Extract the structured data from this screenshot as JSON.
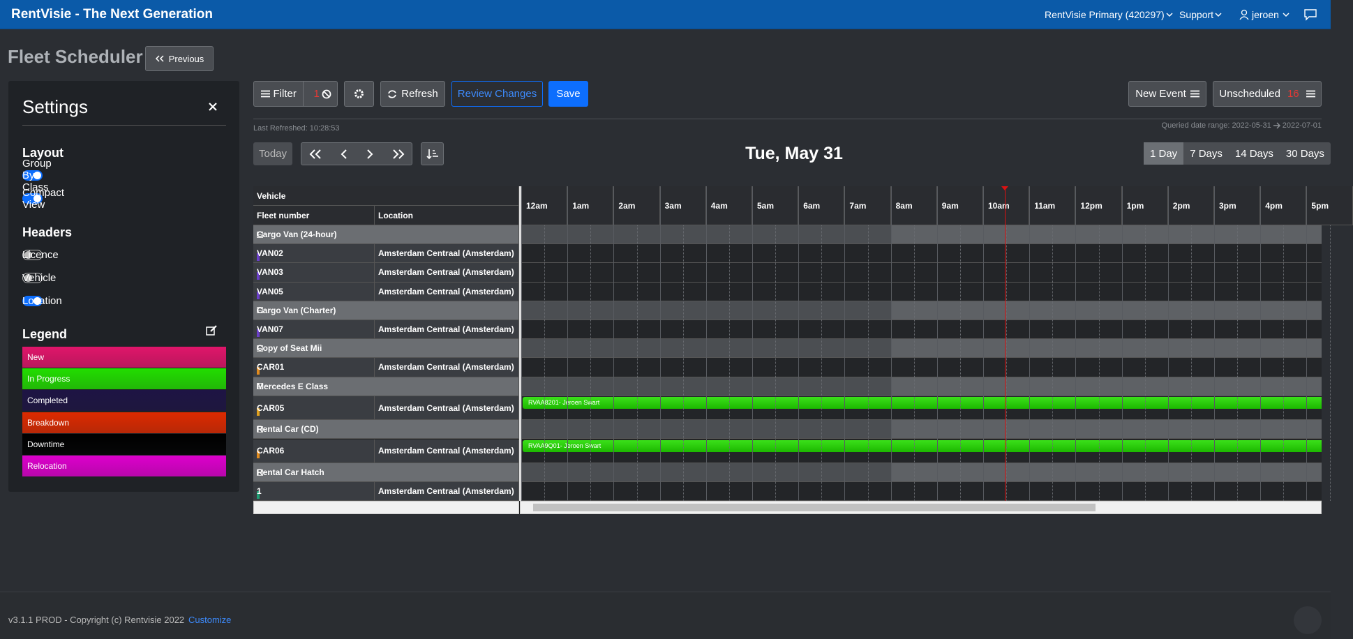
{
  "navbar": {
    "brand": "RentVisie - The Next Generation",
    "account": "RentVisie Primary (420297)",
    "support": "Support",
    "user": "jeroen"
  },
  "page": {
    "title": "Fleet Scheduler",
    "previous": "Previous"
  },
  "settings": {
    "title": "Settings",
    "layout": {
      "heading": "Layout",
      "toggles": [
        {
          "label": "Group By Class",
          "on": true
        },
        {
          "label": "Compact View",
          "on": true
        }
      ]
    },
    "headers": {
      "heading": "Headers",
      "toggles": [
        {
          "label": "Licence",
          "on": false
        },
        {
          "label": "Vehicle",
          "on": false
        },
        {
          "label": "Location",
          "on": true
        }
      ]
    },
    "legend": {
      "heading": "Legend",
      "items": [
        {
          "label": "New",
          "color": "#e0156a"
        },
        {
          "label": "In Progress",
          "color": "#22dd00"
        },
        {
          "label": "Completed",
          "color": "#1e1444"
        },
        {
          "label": "Breakdown",
          "color": "#dd2a00"
        },
        {
          "label": "Downtime",
          "color": "#000000"
        },
        {
          "label": "Relocation",
          "color": "#dd00cc"
        }
      ]
    }
  },
  "toolbar": {
    "filter": "Filter",
    "filter_count": 1,
    "refresh": "Refresh",
    "review": "Review Changes",
    "save": "Save",
    "new_event": "New Event",
    "unscheduled": "Unscheduled",
    "unscheduled_count": 16,
    "last_refreshed": "Last Refreshed: 10:28:53",
    "queried_label": "Queried date range: 2022-05-31",
    "queried_to": "2022-07-01"
  },
  "nav": {
    "today": "Today",
    "date": "Tue, May 31",
    "views": [
      "1 Day",
      "7 Days",
      "14 Days",
      "30 Days"
    ]
  },
  "grid": {
    "vehicle_header": "Vehicle",
    "columns": [
      "Fleet number",
      "Location"
    ],
    "hours": [
      "12am",
      "1am",
      "2am",
      "3am",
      "4am",
      "5am",
      "6am",
      "7am",
      "8am",
      "9am",
      "10am",
      "11am",
      "12pm",
      "1pm",
      "2pm",
      "3pm",
      "4pm",
      "5pm"
    ],
    "rows": [
      {
        "group": "Cargo Van (24-hour)"
      },
      {
        "fleet": "VAN02",
        "location": "Amsterdam Centraal (Amsterdam)",
        "colors": [
          "#2f8be0",
          "#6a3fc8"
        ]
      },
      {
        "fleet": "VAN03",
        "location": "Amsterdam Centraal (Amsterdam)",
        "colors": [
          "#2f8be0",
          "#6a3fc8"
        ]
      },
      {
        "fleet": "VAN05",
        "location": "Amsterdam Centraal (Amsterdam)",
        "colors": [
          "#2f8be0",
          "#6a3fc8"
        ]
      },
      {
        "group": "Cargo Van (Charter)"
      },
      {
        "fleet": "VAN07",
        "location": "Amsterdam Centraal (Amsterdam)",
        "colors": [
          "#6a3fc8"
        ]
      },
      {
        "group": "Copy of Seat Mii"
      },
      {
        "fleet": "CAR01",
        "location": "Amsterdam Centraal (Amsterdam)",
        "colors": [
          "#2bb673",
          "#2f8be0",
          "#e08a1e"
        ]
      },
      {
        "group": "Mercedes E Class"
      },
      {
        "fleet": "CAR05",
        "location": "Amsterdam Centraal (Amsterdam)",
        "colors": [
          "#2f8be0",
          "#e08a1e",
          "#e0a01e"
        ],
        "event": "RVAA8201- Jeroen Swart"
      },
      {
        "group": "Rental Car (CD)"
      },
      {
        "fleet": "CAR06",
        "location": "Amsterdam Centraal (Amsterdam)",
        "colors": [
          "#e08a1e"
        ],
        "event": "RVAA9Q01- Jeroen Swart"
      },
      {
        "group": "Rental Car Hatch"
      },
      {
        "fleet": "1",
        "location": "Amsterdam Centraal (Amsterdam)",
        "colors": [
          "#1f9e74"
        ]
      }
    ]
  },
  "footer": {
    "version": "v3.1.1 PROD - Copyright (c) Rentvisie 2022",
    "customize": "Customize"
  }
}
